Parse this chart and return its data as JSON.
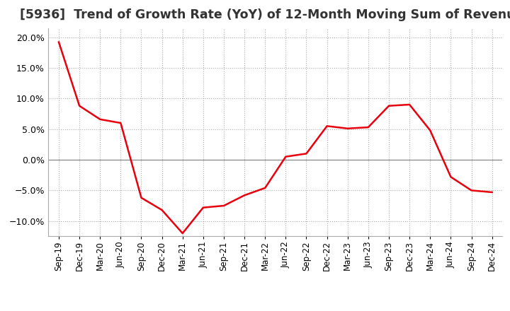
{
  "title": "[5936]  Trend of Growth Rate (YoY) of 12-Month Moving Sum of Revenues",
  "title_fontsize": 12.5,
  "line_color": "#e8000d",
  "background_color": "#ffffff",
  "grid_color": "#aaaaaa",
  "zero_line_color": "#888888",
  "ylim": [
    -0.125,
    0.215
  ],
  "yticks": [
    -0.1,
    -0.05,
    0.0,
    0.05,
    0.1,
    0.15,
    0.2
  ],
  "x_labels": [
    "Sep-19",
    "Dec-19",
    "Mar-20",
    "Jun-20",
    "Sep-20",
    "Dec-20",
    "Mar-21",
    "Jun-21",
    "Sep-21",
    "Dec-21",
    "Mar-22",
    "Jun-22",
    "Sep-22",
    "Dec-22",
    "Mar-23",
    "Jun-23",
    "Sep-23",
    "Dec-23",
    "Mar-24",
    "Jun-24",
    "Sep-24",
    "Dec-24"
  ],
  "y_values": [
    0.192,
    0.088,
    0.066,
    0.06,
    -0.062,
    -0.082,
    -0.12,
    -0.078,
    -0.075,
    -0.058,
    -0.046,
    0.005,
    0.01,
    0.055,
    0.051,
    0.053,
    0.088,
    0.09,
    0.048,
    -0.028,
    -0.05,
    -0.053
  ]
}
